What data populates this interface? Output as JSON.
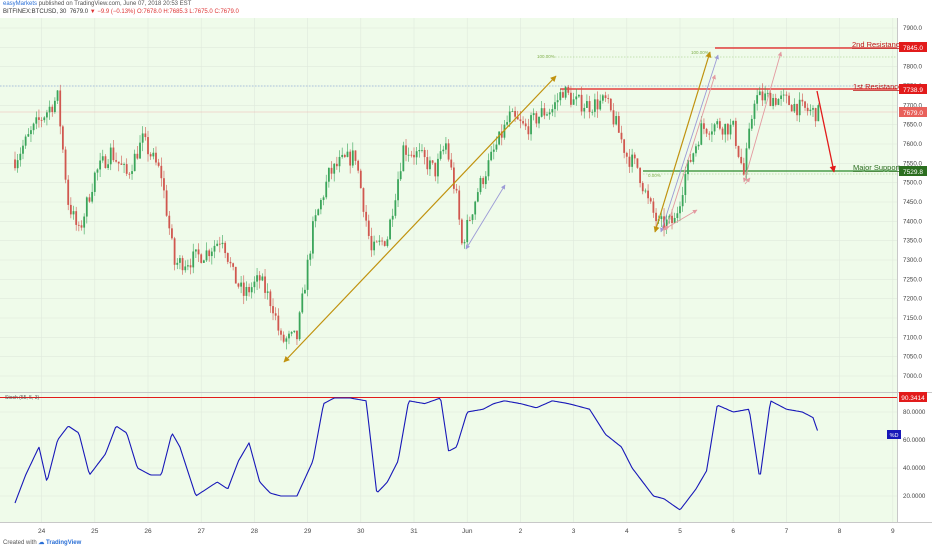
{
  "header": {
    "line1": {
      "author": "easyMarkets",
      "text": " published on TradingView.com, June 07, 2018 20:53 EST"
    },
    "line2": {
      "symbol": "BITFINEX:BTCUSD, 30",
      "close_value": "7679.0",
      "change": "▼ −9.9 (−0.13%)",
      "ohlc": "O:7678.0 H:7685.3 L:7675.0 C:7679.0"
    }
  },
  "price_axis": {
    "ticks": [
      "7900.0",
      "7850.0",
      "7800.0",
      "7750.0",
      "7700.0",
      "7650.0",
      "7600.0",
      "7550.0",
      "7500.0",
      "7450.0",
      "7400.0",
      "7350.0",
      "7300.0",
      "7250.0",
      "7200.0",
      "7150.0",
      "7100.0",
      "7050.0",
      "7000.0"
    ],
    "badges": {
      "second_resistance": "7845.0",
      "first_resistance": "7738.9",
      "last_price": "7679.0",
      "major_support": "7529.8"
    }
  },
  "annotations": {
    "second_resistance": "2nd Resistance",
    "first_resistance": "1st Resistance",
    "major_support": "Major Support",
    "fib_100_left": "100.00%",
    "fib_100_right": "100.00%",
    "fib_small": "0.00%"
  },
  "stoch": {
    "title": "Stoch (55, 5, 3)",
    "ticks": [
      "80.0000",
      "60.0000",
      "40.0000",
      "20.0000"
    ],
    "level_badge": "90.3414",
    "series_badge": "%D"
  },
  "time_axis": {
    "labels": [
      "24",
      "25",
      "26",
      "27",
      "28",
      "29",
      "30",
      "31",
      "Jun",
      "2",
      "3",
      "4",
      "5",
      "6",
      "7",
      "8",
      "9"
    ]
  },
  "footer": {
    "created_with": "Created with",
    "brand": "TradingView"
  },
  "colors": {
    "background": "#effbea",
    "bull": "#3aa55a",
    "bear": "#d0574f",
    "resistance": "#e21b1b",
    "support": "#2b8a2b",
    "stoch_line": "#1717b8",
    "trend_gold": "#c0920e",
    "trend_purple": "#9c9bd6",
    "trend_pink": "#e39aa0"
  },
  "chart_data": {
    "type": "candlestick",
    "symbol": "BITFINEX:BTCUSD",
    "y_range": [
      7000,
      7900
    ],
    "levels": [
      {
        "label": "2nd Resistance",
        "value": 7845.0
      },
      {
        "label": "1st Resistance",
        "value": 7738.9
      },
      {
        "label": "Major Support",
        "value": 7529.8
      }
    ],
    "price_path": [
      {
        "t": 0.0,
        "p": 7560
      },
      {
        "t": 0.4,
        "p": 7650
      },
      {
        "t": 0.8,
        "p": 7720
      },
      {
        "t": 1.0,
        "p": 7450
      },
      {
        "t": 1.2,
        "p": 7370
      },
      {
        "t": 1.5,
        "p": 7520
      },
      {
        "t": 1.8,
        "p": 7580
      },
      {
        "t": 2.1,
        "p": 7520
      },
      {
        "t": 2.4,
        "p": 7610
      },
      {
        "t": 2.6,
        "p": 7560
      },
      {
        "t": 2.75,
        "p": 7520
      },
      {
        "t": 3.0,
        "p": 7290
      },
      {
        "t": 3.3,
        "p": 7300
      },
      {
        "t": 3.6,
        "p": 7320
      },
      {
        "t": 3.9,
        "p": 7360
      },
      {
        "t": 4.1,
        "p": 7260
      },
      {
        "t": 4.3,
        "p": 7210
      },
      {
        "t": 4.6,
        "p": 7250
      },
      {
        "t": 4.85,
        "p": 7180
      },
      {
        "t": 5.0,
        "p": 7090
      },
      {
        "t": 5.3,
        "p": 7100
      },
      {
        "t": 5.6,
        "p": 7380
      },
      {
        "t": 5.9,
        "p": 7520
      },
      {
        "t": 6.1,
        "p": 7550
      },
      {
        "t": 6.4,
        "p": 7570
      },
      {
        "t": 6.7,
        "p": 7320
      },
      {
        "t": 7.0,
        "p": 7360
      },
      {
        "t": 7.3,
        "p": 7590
      },
      {
        "t": 7.6,
        "p": 7570
      },
      {
        "t": 7.9,
        "p": 7530
      },
      {
        "t": 8.1,
        "p": 7600
      },
      {
        "t": 8.3,
        "p": 7460
      },
      {
        "t": 8.4,
        "p": 7340
      },
      {
        "t": 8.7,
        "p": 7480
      },
      {
        "t": 9.0,
        "p": 7580
      },
      {
        "t": 9.3,
        "p": 7670
      },
      {
        "t": 9.6,
        "p": 7640
      },
      {
        "t": 9.9,
        "p": 7680
      },
      {
        "t": 10.1,
        "p": 7690
      },
      {
        "t": 10.3,
        "p": 7740
      },
      {
        "t": 10.5,
        "p": 7710
      },
      {
        "t": 10.8,
        "p": 7700
      },
      {
        "t": 11.1,
        "p": 7710
      },
      {
        "t": 11.3,
        "p": 7650
      },
      {
        "t": 11.5,
        "p": 7570
      },
      {
        "t": 11.7,
        "p": 7540
      },
      {
        "t": 11.9,
        "p": 7450
      },
      {
        "t": 12.1,
        "p": 7390
      },
      {
        "t": 12.4,
        "p": 7400
      },
      {
        "t": 12.6,
        "p": 7520
      },
      {
        "t": 12.9,
        "p": 7640
      },
      {
        "t": 13.2,
        "p": 7650
      },
      {
        "t": 13.5,
        "p": 7640
      },
      {
        "t": 13.7,
        "p": 7520
      },
      {
        "t": 13.9,
        "p": 7720
      },
      {
        "t": 14.2,
        "p": 7720
      },
      {
        "t": 14.5,
        "p": 7710
      },
      {
        "t": 14.8,
        "p": 7690
      },
      {
        "t": 15.1,
        "p": 7679
      }
    ],
    "stoch_d_path": [
      {
        "t": 0.0,
        "p": 15
      },
      {
        "t": 0.2,
        "p": 35
      },
      {
        "t": 0.45,
        "p": 55
      },
      {
        "t": 0.6,
        "p": 30
      },
      {
        "t": 0.8,
        "p": 60
      },
      {
        "t": 1.0,
        "p": 70
      },
      {
        "t": 1.2,
        "p": 65
      },
      {
        "t": 1.4,
        "p": 35
      },
      {
        "t": 1.7,
        "p": 50
      },
      {
        "t": 1.9,
        "p": 70
      },
      {
        "t": 2.1,
        "p": 65
      },
      {
        "t": 2.3,
        "p": 40
      },
      {
        "t": 2.55,
        "p": 35
      },
      {
        "t": 2.75,
        "p": 35
      },
      {
        "t": 2.95,
        "p": 65
      },
      {
        "t": 3.1,
        "p": 55
      },
      {
        "t": 3.4,
        "p": 20
      },
      {
        "t": 3.8,
        "p": 30
      },
      {
        "t": 4.0,
        "p": 25
      },
      {
        "t": 4.2,
        "p": 45
      },
      {
        "t": 4.4,
        "p": 58
      },
      {
        "t": 4.6,
        "p": 30
      },
      {
        "t": 4.8,
        "p": 22
      },
      {
        "t": 5.0,
        "p": 20
      },
      {
        "t": 5.3,
        "p": 20
      },
      {
        "t": 5.6,
        "p": 45
      },
      {
        "t": 5.8,
        "p": 86
      },
      {
        "t": 6.0,
        "p": 90
      },
      {
        "t": 6.3,
        "p": 90
      },
      {
        "t": 6.6,
        "p": 88
      },
      {
        "t": 6.8,
        "p": 22
      },
      {
        "t": 7.0,
        "p": 30
      },
      {
        "t": 7.2,
        "p": 45
      },
      {
        "t": 7.4,
        "p": 88
      },
      {
        "t": 7.7,
        "p": 86
      },
      {
        "t": 8.0,
        "p": 90
      },
      {
        "t": 8.15,
        "p": 52
      },
      {
        "t": 8.3,
        "p": 55
      },
      {
        "t": 8.5,
        "p": 80
      },
      {
        "t": 8.8,
        "p": 82
      },
      {
        "t": 9.0,
        "p": 86
      },
      {
        "t": 9.2,
        "p": 88
      },
      {
        "t": 9.5,
        "p": 86
      },
      {
        "t": 9.8,
        "p": 83
      },
      {
        "t": 10.1,
        "p": 88
      },
      {
        "t": 10.4,
        "p": 86
      },
      {
        "t": 10.6,
        "p": 84
      },
      {
        "t": 10.8,
        "p": 82
      },
      {
        "t": 11.1,
        "p": 64
      },
      {
        "t": 11.4,
        "p": 55
      },
      {
        "t": 11.6,
        "p": 40
      },
      {
        "t": 11.8,
        "p": 30
      },
      {
        "t": 12.0,
        "p": 20
      },
      {
        "t": 12.2,
        "p": 18
      },
      {
        "t": 12.5,
        "p": 10
      },
      {
        "t": 12.8,
        "p": 25
      },
      {
        "t": 13.0,
        "p": 38
      },
      {
        "t": 13.2,
        "p": 85
      },
      {
        "t": 13.5,
        "p": 80
      },
      {
        "t": 13.8,
        "p": 82
      },
      {
        "t": 14.0,
        "p": 32
      },
      {
        "t": 14.2,
        "p": 88
      },
      {
        "t": 14.5,
        "p": 82
      },
      {
        "t": 14.8,
        "p": 80
      },
      {
        "t": 15.0,
        "p": 76
      },
      {
        "t": 15.1,
        "p": 65
      }
    ]
  }
}
